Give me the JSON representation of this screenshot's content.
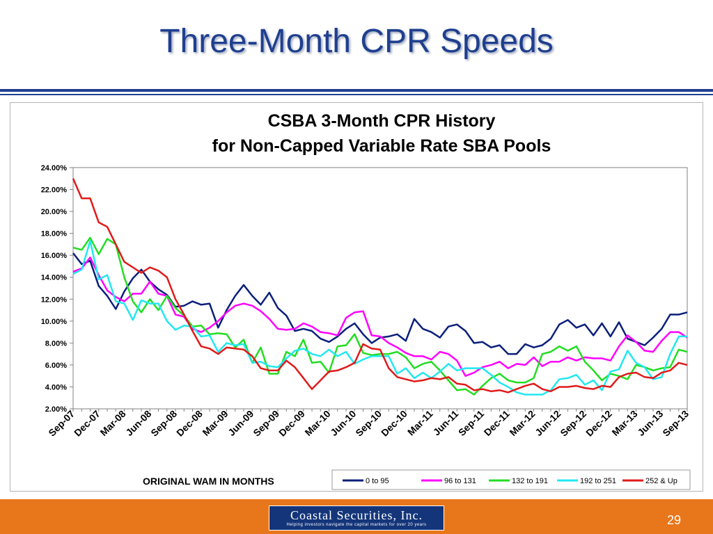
{
  "slide": {
    "title": "Three-Month CPR Speeds",
    "page_number": "29",
    "logo_name": "Coastal Securities, Inc.",
    "logo_tagline": "Helping investors navigate the capital markets for over 20 years"
  },
  "colors": {
    "title": "#1f3f8f",
    "footer": "#e8761a",
    "logo_bg": "#14357a"
  },
  "chart_data": {
    "type": "line",
    "title": [
      "CSBA 3-Month CPR History",
      "for Non-Capped Variable Rate SBA Pools"
    ],
    "xlabel": "",
    "ylabel": "",
    "ylim": [
      2,
      24
    ],
    "yticks": [
      "2.00%",
      "4.00%",
      "6.00%",
      "8.00%",
      "10.00%",
      "12.00%",
      "14.00%",
      "16.00%",
      "18.00%",
      "20.00%",
      "22.00%",
      "24.00%"
    ],
    "xticks": [
      "Sep-07",
      "Dec-07",
      "Mar-08",
      "Jun-08",
      "Sep-08",
      "Dec-08",
      "Mar-09",
      "Jun-09",
      "Sep-09",
      "Dec-09",
      "Mar-10",
      "Jun-10",
      "Sep-10",
      "Dec-10",
      "Mar-11",
      "Jun-11",
      "Sep-11",
      "Dec-11",
      "Mar-12",
      "Jun-12",
      "Sep-12",
      "Dec-12",
      "Mar-13",
      "Jun-13",
      "Sep-13"
    ],
    "grid": false,
    "legend_position": "bottom",
    "legend_title": "ORIGINAL WAM IN MONTHS",
    "series": [
      {
        "name": "0 to 95",
        "color": "#0a1f7a",
        "values": [
          16.2,
          15.2,
          15.5,
          13.2,
          12.3,
          11.1,
          12.7,
          13.9,
          14.7,
          13.6,
          12.9,
          12.4,
          11.3,
          11.4,
          11.8,
          11.5,
          11.6,
          9.4,
          11.0,
          12.3,
          13.3,
          12.3,
          11.5,
          12.6,
          11.2,
          10.5,
          9.1,
          9.3,
          9.1,
          8.4,
          8.1,
          8.6,
          9.3,
          9.8,
          8.8,
          8.0,
          8.5,
          8.6,
          8.8,
          8.2,
          10.2,
          9.3,
          9.0,
          8.5,
          9.5,
          9.7,
          9.1,
          8.0,
          8.1,
          7.6,
          7.8,
          7.0,
          7.0,
          7.9,
          7.6,
          7.8,
          8.4,
          9.7,
          10.1,
          9.4,
          9.7,
          8.7,
          9.8,
          8.6,
          9.9,
          8.4,
          8.1,
          7.8,
          8.5,
          9.3,
          10.6,
          10.6,
          10.8
        ]
      },
      {
        "name": "96 to 131",
        "color": "#ff00ff",
        "values": [
          14.5,
          14.8,
          15.8,
          14.2,
          12.8,
          12.2,
          11.8,
          12.5,
          12.5,
          13.6,
          12.5,
          12.3,
          10.6,
          10.4,
          9.3,
          9.0,
          9.4,
          10.0,
          10.8,
          11.4,
          11.6,
          11.4,
          10.9,
          10.2,
          9.3,
          9.2,
          9.3,
          9.8,
          9.5,
          9.0,
          8.9,
          8.7,
          10.3,
          10.8,
          10.9,
          8.7,
          8.6,
          8.0,
          7.6,
          7.1,
          6.8,
          6.8,
          6.5,
          7.2,
          7.0,
          6.4,
          5.0,
          5.3,
          5.8,
          6.0,
          6.3,
          5.7,
          6.1,
          6.0,
          6.7,
          5.9,
          6.3,
          6.3,
          6.7,
          6.4,
          6.7,
          6.6,
          6.6,
          6.4,
          7.7,
          8.7,
          8.1,
          7.3,
          7.2,
          8.2,
          9.0,
          9.0,
          8.5
        ]
      },
      {
        "name": "132 to 191",
        "color": "#22dd22",
        "values": [
          16.7,
          16.5,
          17.6,
          16.1,
          17.5,
          17.0,
          14.0,
          11.8,
          10.8,
          12.0,
          11.0,
          12.3,
          11.2,
          10.5,
          9.5,
          9.6,
          8.8,
          8.9,
          8.8,
          7.6,
          8.3,
          6.2,
          7.6,
          5.2,
          5.2,
          7.2,
          6.8,
          8.3,
          6.2,
          6.3,
          5.3,
          7.7,
          7.8,
          8.8,
          7.1,
          6.9,
          7.0,
          7.0,
          7.2,
          6.7,
          5.7,
          6.1,
          6.3,
          5.5,
          4.6,
          3.7,
          3.8,
          3.3,
          4.1,
          4.8,
          5.2,
          4.6,
          4.4,
          4.4,
          4.8,
          7.0,
          7.2,
          7.7,
          7.3,
          7.7,
          6.3,
          5.5,
          4.6,
          5.2,
          5.0,
          4.7,
          6.0,
          5.8,
          5.5,
          5.7,
          5.8,
          7.4,
          7.2
        ]
      },
      {
        "name": "192 to 251",
        "color": "#22e8f0",
        "values": [
          14.3,
          14.7,
          17.3,
          13.8,
          14.2,
          11.8,
          11.6,
          10.1,
          11.9,
          11.6,
          11.6,
          10.0,
          9.2,
          9.6,
          9.5,
          8.6,
          8.7,
          7.2,
          8.0,
          7.8,
          7.9,
          6.2,
          6.3,
          5.9,
          5.8,
          6.6,
          7.3,
          7.5,
          7.0,
          6.8,
          7.4,
          6.8,
          7.2,
          6.1,
          6.5,
          6.8,
          6.8,
          6.8,
          5.2,
          5.7,
          4.8,
          5.3,
          4.8,
          5.4,
          6.1,
          5.5,
          5.7,
          5.7,
          5.7,
          5.1,
          4.4,
          4.0,
          3.5,
          3.3,
          3.3,
          3.3,
          3.7,
          4.7,
          4.8,
          5.1,
          4.2,
          4.6,
          3.7,
          5.4,
          5.6,
          7.3,
          6.2,
          5.8,
          4.7,
          4.9,
          7.0,
          8.6,
          8.6
        ]
      },
      {
        "name": "252 & Up",
        "color": "#e01a1a",
        "values": [
          23.0,
          21.2,
          21.2,
          19.0,
          18.6,
          17.0,
          15.4,
          14.9,
          14.4,
          14.9,
          14.6,
          14.0,
          12.0,
          10.6,
          9.1,
          7.7,
          7.5,
          7.0,
          7.6,
          7.5,
          7.4,
          6.8,
          5.7,
          5.5,
          5.5,
          6.4,
          5.8,
          4.8,
          3.8,
          4.6,
          5.4,
          5.5,
          5.8,
          6.2,
          7.9,
          7.5,
          7.4,
          5.7,
          4.9,
          4.7,
          4.5,
          4.6,
          4.8,
          4.7,
          4.9,
          4.3,
          4.2,
          3.7,
          3.8,
          3.6,
          3.7,
          3.5,
          3.8,
          4.1,
          4.3,
          3.8,
          3.6,
          4.0,
          4.0,
          4.1,
          3.9,
          3.8,
          4.1,
          4.0,
          4.9,
          5.2,
          5.3,
          4.9,
          4.8,
          5.3,
          5.5,
          6.2,
          6.0
        ]
      }
    ]
  }
}
